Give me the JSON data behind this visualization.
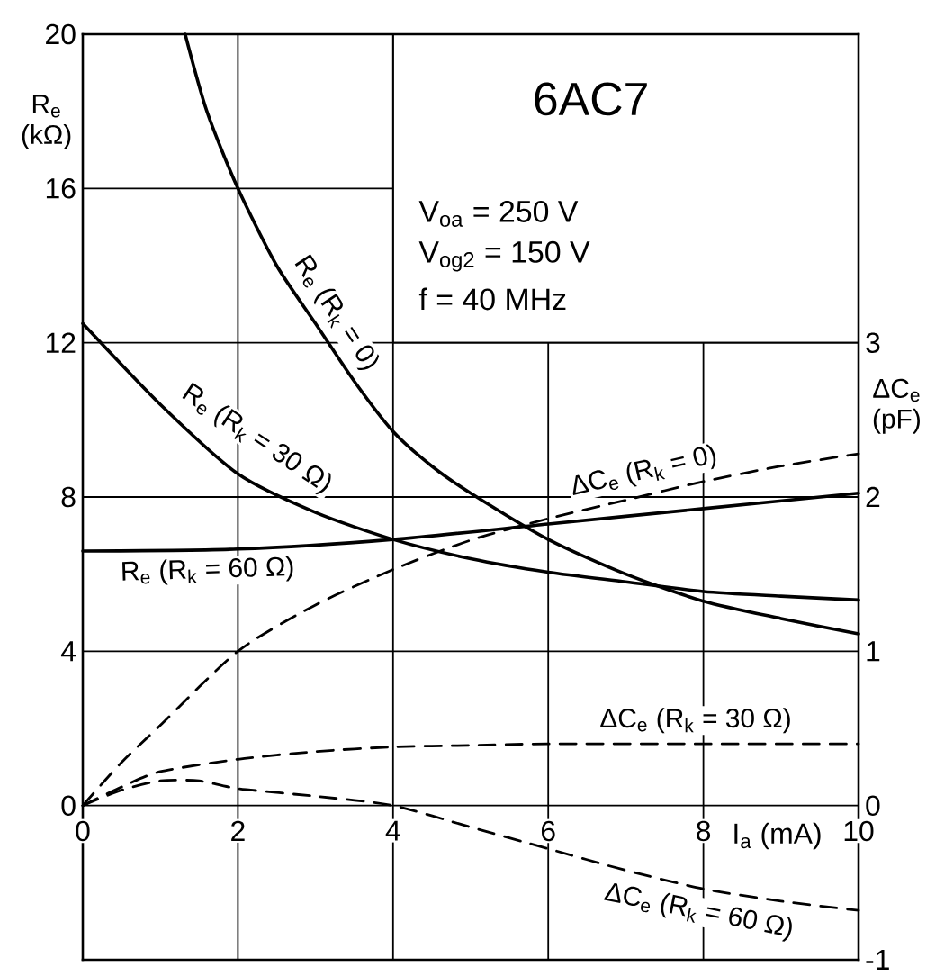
{
  "chart_data": {
    "type": "line",
    "title": "6AC7",
    "annotations": [
      "V$_{oa}$ = 250 V",
      "V$_{og2}$ = 150 V",
      "f = 40 MHz"
    ],
    "xlabel": "I$_{a}$ (mA)",
    "ylabel": "R$_{e}$ (kΩ)",
    "y2label": "ΔC$_{e}$ (pF)",
    "xlim": [
      0,
      10
    ],
    "xticks": [
      0,
      2,
      4,
      6,
      8,
      10
    ],
    "ylim": [
      -4,
      20
    ],
    "yticks": [
      0,
      4,
      8,
      12,
      16,
      20
    ],
    "y2lim": [
      -1,
      5
    ],
    "y2ticks": [
      -1,
      0,
      1,
      2,
      3
    ],
    "grid": true,
    "marker": "none",
    "series": [
      {
        "name": "R$_{e}$ (R$_{k}$ = 0)",
        "color": "#000000",
        "line_style": "solid",
        "x": [
          1.32,
          1.6,
          2,
          2.5,
          3,
          3.5,
          4,
          4.5,
          5,
          6,
          7,
          8,
          9,
          10
        ],
        "values": [
          20,
          18,
          16,
          14,
          12.5,
          11,
          9.7,
          8.8,
          8.1,
          6.9,
          6.0,
          5.3,
          4.85,
          4.45
        ]
      },
      {
        "name": "R$_{e}$ (R$_{k}$ = 30 Ω)",
        "color": "#000000",
        "line_style": "solid",
        "x": [
          0,
          1,
          2,
          3,
          4,
          5,
          6,
          7,
          8,
          9,
          10
        ],
        "values": [
          12.5,
          10.4,
          8.6,
          7.6,
          6.9,
          6.4,
          6.05,
          5.8,
          5.55,
          5.43,
          5.33
        ]
      },
      {
        "name": "R$_{e}$ (R$_{k}$ = 60 Ω)",
        "color": "#000000",
        "line_style": "solid",
        "x": [
          0,
          2,
          4,
          6,
          8,
          10
        ],
        "values": [
          6.6,
          6.65,
          6.9,
          7.3,
          7.7,
          8.1
        ]
      },
      {
        "name": "ΔC$_{e}$ (R$_{k}$ = 0)",
        "color": "#000000",
        "line_style": "dashed",
        "axis": "y2",
        "x": [
          0,
          0.5,
          1,
          2,
          3,
          4,
          5,
          6,
          7,
          8,
          9,
          10
        ],
        "values": [
          0,
          0.28,
          0.52,
          1.0,
          1.3,
          1.53,
          1.72,
          1.86,
          1.98,
          2.1,
          2.2,
          2.28
        ]
      },
      {
        "name": "ΔC$_{e}$ (R$_{k}$ = 30 Ω)",
        "color": "#000000",
        "line_style": "dashed",
        "axis": "y2",
        "x": [
          0,
          0.5,
          1,
          2,
          3,
          4,
          5,
          6,
          8,
          10
        ],
        "values": [
          0,
          0.12,
          0.22,
          0.3,
          0.35,
          0.38,
          0.39,
          0.4,
          0.4,
          0.4
        ]
      },
      {
        "name": "ΔC$_{e}$ (R$_{k}$ = 60 Ω)",
        "color": "#000000",
        "line_style": "dashed",
        "axis": "y2",
        "x": [
          0,
          0.5,
          1,
          1.5,
          2,
          3,
          4,
          5,
          6,
          7,
          8,
          9,
          10
        ],
        "values": [
          0,
          0.1,
          0.16,
          0.16,
          0.11,
          0.06,
          0,
          -0.14,
          -0.28,
          -0.42,
          -0.54,
          -0.62,
          -0.68
        ]
      }
    ]
  }
}
